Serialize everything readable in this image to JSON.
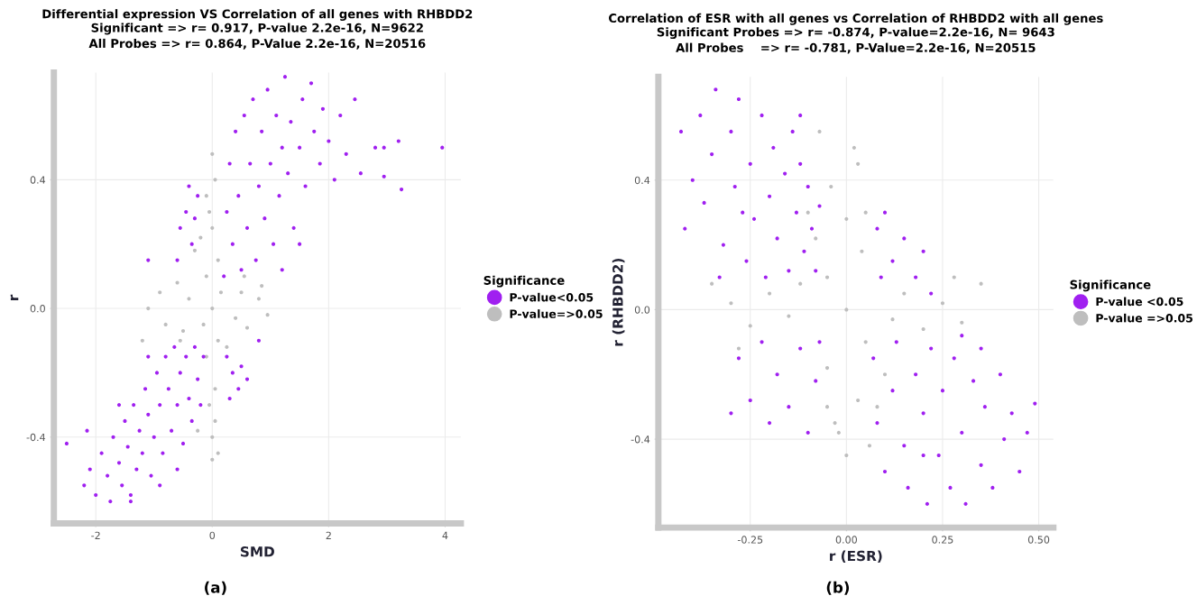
{
  "chart_data": [
    {
      "type": "scatter",
      "title": "Differential expression VS Correlation of all genes with RHBDD2",
      "subtitle": "Significant => r= 0.917, P-value 2.2e-16, N=9622\nAll Probes => r= 0.864, P-Value 2.2e-16, N=20516",
      "xlabel": "SMD",
      "ylabel": "r",
      "legend_title": "Significance",
      "legend": "right",
      "grid": true,
      "marker": "circle",
      "xlim": [
        -2.72,
        4.27
      ],
      "xticks": [
        -2,
        0,
        2,
        4
      ],
      "ylim": [
        -0.668,
        0.733
      ],
      "yticks": [
        {
          "value": -0.4,
          "label": "-0.4"
        },
        {
          "value": 0,
          "label": "0.0"
        },
        {
          "value": 0.4,
          "label": "0.4"
        }
      ],
      "annotations": [
        "(a)"
      ],
      "series": [
        {
          "name": "P-value<0.05",
          "color": "#a020f0",
          "x": [
            -2.2,
            -2.1,
            -2.0,
            -1.9,
            -1.8,
            -1.75,
            -1.7,
            -1.6,
            -1.55,
            -1.5,
            -1.45,
            -1.4,
            -1.35,
            -1.3,
            -1.25,
            -1.2,
            -1.15,
            -1.1,
            -1.05,
            -1.0,
            -0.95,
            -0.9,
            -0.85,
            -0.8,
            -0.75,
            -0.7,
            -0.65,
            -0.6,
            -0.55,
            -0.5,
            -0.45,
            -0.4,
            -0.35,
            -0.3,
            -0.25,
            -0.2,
            -0.15,
            -0.6,
            -1.1,
            -1.6,
            -2.5,
            -2.15,
            -1.4,
            -0.9,
            0.25,
            0.35,
            0.45,
            0.3,
            0.5,
            0.6,
            0.8,
            -0.55,
            -0.45,
            -0.35,
            -0.25,
            -0.6,
            -0.3,
            -1.1,
            -0.4,
            0.2,
            0.25,
            0.3,
            0.35,
            0.4,
            0.45,
            0.5,
            0.55,
            0.6,
            0.65,
            0.7,
            0.75,
            0.8,
            0.85,
            0.9,
            0.95,
            1.0,
            1.05,
            1.1,
            1.15,
            1.2,
            1.25,
            1.3,
            1.35,
            1.4,
            1.5,
            1.55,
            1.6,
            1.7,
            1.75,
            1.85,
            1.9,
            2.0,
            2.1,
            2.2,
            2.3,
            2.45,
            2.55,
            1.5,
            1.2,
            2.8,
            2.95,
            3.2,
            3.95,
            2.95,
            3.25
          ],
          "values": [
            -0.55,
            -0.5,
            -0.58,
            -0.45,
            -0.52,
            -0.6,
            -0.4,
            -0.48,
            -0.55,
            -0.35,
            -0.43,
            -0.58,
            -0.3,
            -0.5,
            -0.38,
            -0.45,
            -0.25,
            -0.33,
            -0.52,
            -0.4,
            -0.2,
            -0.3,
            -0.45,
            -0.15,
            -0.25,
            -0.38,
            -0.12,
            -0.3,
            -0.2,
            -0.42,
            -0.15,
            -0.28,
            -0.35,
            -0.12,
            -0.22,
            -0.3,
            -0.15,
            -0.5,
            -0.15,
            -0.3,
            -0.42,
            -0.38,
            -0.6,
            -0.55,
            -0.15,
            -0.2,
            -0.25,
            -0.28,
            -0.18,
            -0.22,
            -0.1,
            0.25,
            0.3,
            0.2,
            0.35,
            0.15,
            0.28,
            0.15,
            0.38,
            0.1,
            0.3,
            0.45,
            0.2,
            0.55,
            0.35,
            0.12,
            0.6,
            0.25,
            0.45,
            0.65,
            0.15,
            0.38,
            0.55,
            0.28,
            0.68,
            0.45,
            0.2,
            0.6,
            0.35,
            0.5,
            0.72,
            0.42,
            0.58,
            0.25,
            0.5,
            0.65,
            0.38,
            0.7,
            0.55,
            0.45,
            0.62,
            0.52,
            0.4,
            0.6,
            0.48,
            0.65,
            0.42,
            0.2,
            0.12,
            0.5,
            0.5,
            0.52,
            0.5,
            0.41,
            0.37
          ]
        },
        {
          "name": "P-value=>0.05",
          "color": "#bebebe",
          "x": [
            0,
            -0.05,
            0.05,
            -0.1,
            0.1,
            0,
            -0.1,
            0.1,
            0,
            -0.1,
            0.05,
            0,
            0.15,
            -0.15,
            0.05,
            -0.05,
            0.1,
            -1.1,
            -0.9,
            -0.8,
            -0.6,
            -0.5,
            -0.4,
            0.4,
            0.5,
            0.6,
            0.8,
            0.95,
            -1.2,
            0.85,
            -0.3,
            -0.2,
            0.25,
            -0.55,
            0.55,
            0.0,
            -0.25
          ],
          "values": [
            -0.4,
            -0.3,
            -0.25,
            -0.15,
            -0.1,
            0.0,
            0.1,
            0.15,
            0.25,
            0.35,
            0.4,
            0.48,
            0.05,
            -0.05,
            -0.35,
            0.3,
            -0.45,
            0.0,
            0.05,
            -0.05,
            0.08,
            -0.07,
            0.03,
            -0.03,
            0.05,
            -0.06,
            0.03,
            -0.02,
            -0.1,
            0.07,
            0.18,
            0.22,
            -0.12,
            -0.1,
            0.1,
            -0.47,
            -0.38
          ]
        }
      ]
    },
    {
      "type": "scatter",
      "title": "Correlation of ESR with all genes vs Correlation of RHBDD2 with all genes",
      "subtitle": "Significant Probes => r= -0.874, P-value=2.2e-16, N= 9643\nAll Probes    => r= -0.781, P-Value=2.2e-16, N=20515",
      "xlabel": "r (ESR)",
      "ylabel": "r (RHBDD2)",
      "legend_title": "Significance",
      "legend": "right",
      "grid": true,
      "marker": "circle",
      "xlim": [
        -0.489,
        0.538
      ],
      "xticks": [
        -0.25,
        {
          "value": 0,
          "label": "0.00"
        },
        0.25,
        {
          "value": 0.5,
          "label": "0.50"
        }
      ],
      "ylim": [
        -0.673,
        0.719
      ],
      "yticks": [
        {
          "value": -0.4,
          "label": "-0.4"
        },
        {
          "value": 0,
          "label": "0.0"
        },
        {
          "value": 0.4,
          "label": "0.4"
        }
      ],
      "annotations": [
        "(b)"
      ],
      "series": [
        {
          "name": "P-value <0.05",
          "color": "#a020f0",
          "x": [
            -0.43,
            -0.42,
            -0.4,
            -0.38,
            -0.37,
            -0.35,
            -0.34,
            -0.32,
            -0.3,
            -0.29,
            -0.28,
            -0.26,
            -0.25,
            -0.24,
            -0.22,
            -0.21,
            -0.2,
            -0.19,
            -0.18,
            -0.16,
            -0.15,
            -0.14,
            -0.13,
            -0.12,
            -0.11,
            -0.1,
            -0.09,
            -0.08,
            -0.07,
            -0.12,
            -0.27,
            -0.33,
            -0.28,
            -0.25,
            -0.22,
            -0.2,
            -0.18,
            -0.15,
            -0.12,
            -0.1,
            -0.08,
            -0.07,
            -0.3,
            0.08,
            0.1,
            0.12,
            0.15,
            0.18,
            0.2,
            0.22,
            0.09,
            0.07,
            0.08,
            0.1,
            0.12,
            0.13,
            0.15,
            0.16,
            0.18,
            0.2,
            0.21,
            0.22,
            0.24,
            0.25,
            0.27,
            0.28,
            0.3,
            0.31,
            0.33,
            0.35,
            0.36,
            0.38,
            0.4,
            0.41,
            0.43,
            0.45,
            0.47,
            0.49,
            0.35,
            0.3,
            0.2
          ],
          "values": [
            0.55,
            0.25,
            0.4,
            0.6,
            0.33,
            0.48,
            0.68,
            0.2,
            0.55,
            0.38,
            0.65,
            0.15,
            0.45,
            0.28,
            0.6,
            0.1,
            0.35,
            0.5,
            0.22,
            0.42,
            0.12,
            0.55,
            0.3,
            0.45,
            0.18,
            0.38,
            0.25,
            0.12,
            0.32,
            0.6,
            0.3,
            0.1,
            -0.15,
            -0.28,
            -0.1,
            -0.35,
            -0.2,
            -0.3,
            -0.12,
            -0.38,
            -0.22,
            -0.1,
            -0.32,
            0.25,
            0.3,
            0.15,
            0.22,
            0.1,
            0.18,
            0.05,
            0.1,
            -0.15,
            -0.35,
            -0.5,
            -0.25,
            -0.1,
            -0.42,
            -0.55,
            -0.2,
            -0.32,
            -0.6,
            -0.12,
            -0.45,
            -0.25,
            -0.55,
            -0.15,
            -0.38,
            -0.6,
            -0.22,
            -0.48,
            -0.3,
            -0.55,
            -0.2,
            -0.4,
            -0.32,
            -0.5,
            -0.38,
            -0.29,
            -0.12,
            -0.08,
            -0.45
          ]
        },
        {
          "name": "P-value =>0.05",
          "color": "#bebebe",
          "x": [
            0,
            -0.03,
            0.03,
            -0.05,
            0.05,
            0,
            -0.05,
            0.04,
            0,
            -0.04,
            0.03,
            -0.07,
            0.02,
            0.06,
            -0.02,
            -0.35,
            -0.3,
            -0.25,
            -0.2,
            -0.15,
            -0.12,
            0.12,
            0.15,
            0.2,
            0.25,
            0.3,
            0.35,
            -0.28,
            0.28,
            -0.1,
            0.08,
            -0.08,
            0.1,
            0.05,
            -0.05
          ],
          "values": [
            -0.45,
            -0.35,
            -0.28,
            -0.18,
            -0.1,
            0,
            0.1,
            0.18,
            0.28,
            0.38,
            0.45,
            0.55,
            0.5,
            -0.42,
            -0.38,
            0.08,
            0.02,
            -0.05,
            0.05,
            -0.02,
            0.08,
            -0.03,
            0.05,
            -0.06,
            0.02,
            -0.04,
            0.08,
            -0.12,
            0.1,
            0.3,
            -0.3,
            0.22,
            -0.2,
            0.3,
            -0.3
          ]
        }
      ]
    }
  ]
}
